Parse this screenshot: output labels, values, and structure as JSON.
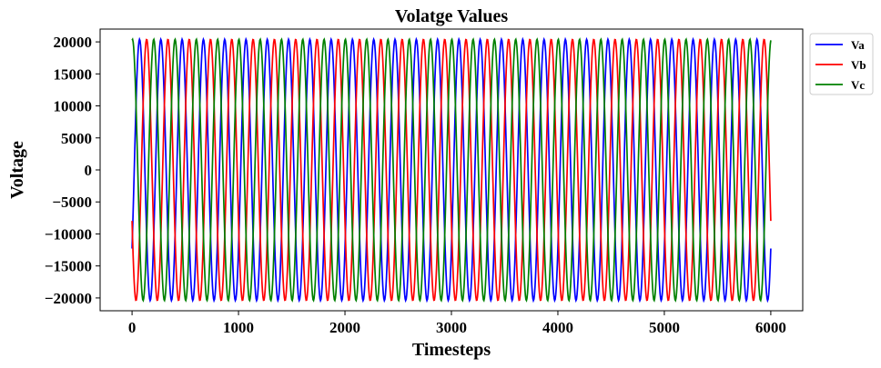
{
  "chart_data": {
    "type": "line",
    "title": "Volatge Values",
    "xlabel": "Timesteps",
    "ylabel": "Voltage",
    "xlim": [
      -300,
      6300
    ],
    "ylim": [
      -22000,
      22000
    ],
    "xticks": [
      0,
      1000,
      2000,
      3000,
      4000,
      5000,
      6000
    ],
    "yticks": [
      -20000,
      -15000,
      -10000,
      -5000,
      0,
      5000,
      10000,
      15000,
      20000
    ],
    "grid": false,
    "legend": "outside-top-right",
    "x_range": [
      0,
      6000
    ],
    "amplitude": 20400,
    "period_timesteps": 200,
    "series": [
      {
        "name": "Va",
        "color": "#0000ff",
        "phase_deg": -37
      },
      {
        "name": "Vb",
        "color": "#ff0000",
        "phase_deg": -157
      },
      {
        "name": "Vc",
        "color": "#008000",
        "phase_deg": 83
      }
    ]
  }
}
